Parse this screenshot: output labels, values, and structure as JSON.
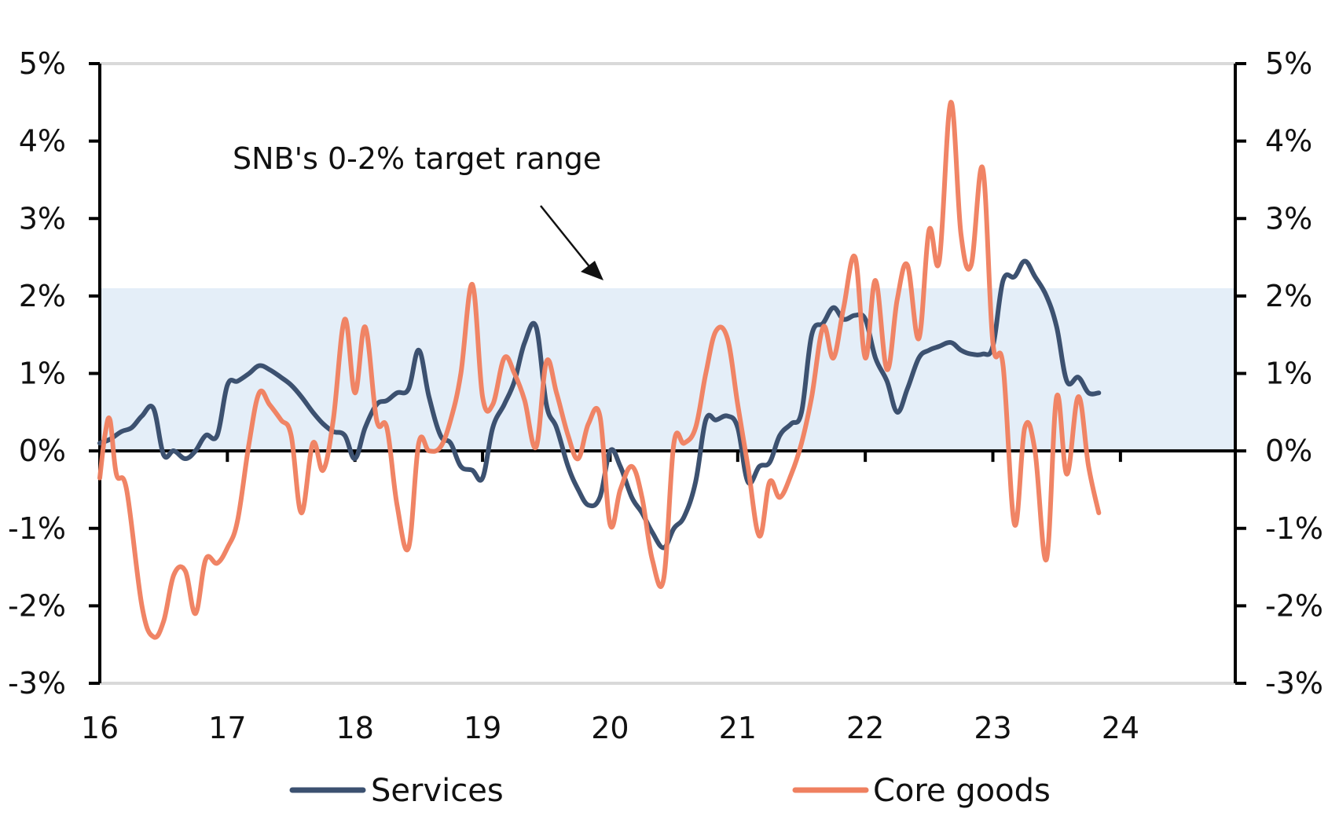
{
  "chart_data": {
    "type": "line",
    "x_tick_labels": [
      "16",
      "17",
      "18",
      "19",
      "20",
      "21",
      "22",
      "23",
      "24"
    ],
    "x_range": [
      2016,
      2024.9
    ],
    "y_tick_labels": [
      "5%",
      "4%",
      "3%",
      "2%",
      "1%",
      "0%",
      "-1%",
      "-2%",
      "-3%"
    ],
    "y_ticks": [
      5,
      4,
      3,
      2,
      1,
      0,
      -1,
      -2,
      -3
    ],
    "ylim": [
      -3,
      5
    ],
    "y_unit": "%",
    "target_band": {
      "low": 0,
      "high": 2.1,
      "color": "#e4eef8"
    },
    "annotation": "SNB's 0-2% target range",
    "grid": false,
    "legend_position": "bottom",
    "series": [
      {
        "name": "Services",
        "color": "#3c5170",
        "points": [
          [
            2016.0,
            0.1
          ],
          [
            2016.08,
            0.15
          ],
          [
            2016.17,
            0.25
          ],
          [
            2016.25,
            0.3
          ],
          [
            2016.33,
            0.45
          ],
          [
            2016.42,
            0.55
          ],
          [
            2016.5,
            -0.05
          ],
          [
            2016.58,
            0.0
          ],
          [
            2016.67,
            -0.1
          ],
          [
            2016.75,
            0.0
          ],
          [
            2016.83,
            0.2
          ],
          [
            2016.92,
            0.2
          ],
          [
            2017.0,
            0.85
          ],
          [
            2017.08,
            0.9
          ],
          [
            2017.17,
            1.0
          ],
          [
            2017.25,
            1.1
          ],
          [
            2017.33,
            1.05
          ],
          [
            2017.42,
            0.95
          ],
          [
            2017.5,
            0.85
          ],
          [
            2017.58,
            0.7
          ],
          [
            2017.67,
            0.5
          ],
          [
            2017.75,
            0.35
          ],
          [
            2017.83,
            0.25
          ],
          [
            2017.92,
            0.2
          ],
          [
            2018.0,
            -0.1
          ],
          [
            2018.08,
            0.3
          ],
          [
            2018.17,
            0.6
          ],
          [
            2018.25,
            0.65
          ],
          [
            2018.33,
            0.75
          ],
          [
            2018.42,
            0.8
          ],
          [
            2018.5,
            1.3
          ],
          [
            2018.58,
            0.7
          ],
          [
            2018.67,
            0.2
          ],
          [
            2018.75,
            0.1
          ],
          [
            2018.83,
            -0.2
          ],
          [
            2018.92,
            -0.25
          ],
          [
            2019.0,
            -0.35
          ],
          [
            2019.08,
            0.3
          ],
          [
            2019.17,
            0.6
          ],
          [
            2019.25,
            0.9
          ],
          [
            2019.33,
            1.4
          ],
          [
            2019.42,
            1.6
          ],
          [
            2019.5,
            0.6
          ],
          [
            2019.58,
            0.3
          ],
          [
            2019.67,
            -0.2
          ],
          [
            2019.75,
            -0.5
          ],
          [
            2019.83,
            -0.7
          ],
          [
            2019.92,
            -0.6
          ],
          [
            2020.0,
            0.0
          ],
          [
            2020.08,
            -0.2
          ],
          [
            2020.17,
            -0.6
          ],
          [
            2020.25,
            -0.8
          ],
          [
            2020.33,
            -1.05
          ],
          [
            2020.42,
            -1.25
          ],
          [
            2020.5,
            -1.0
          ],
          [
            2020.58,
            -0.85
          ],
          [
            2020.67,
            -0.4
          ],
          [
            2020.75,
            0.4
          ],
          [
            2020.83,
            0.4
          ],
          [
            2020.92,
            0.45
          ],
          [
            2021.0,
            0.3
          ],
          [
            2021.08,
            -0.4
          ],
          [
            2021.17,
            -0.2
          ],
          [
            2021.25,
            -0.15
          ],
          [
            2021.33,
            0.2
          ],
          [
            2021.42,
            0.35
          ],
          [
            2021.5,
            0.5
          ],
          [
            2021.58,
            1.5
          ],
          [
            2021.67,
            1.65
          ],
          [
            2021.75,
            1.85
          ],
          [
            2021.83,
            1.7
          ],
          [
            2021.92,
            1.75
          ],
          [
            2022.0,
            1.7
          ],
          [
            2022.08,
            1.2
          ],
          [
            2022.17,
            0.9
          ],
          [
            2022.25,
            0.5
          ],
          [
            2022.33,
            0.8
          ],
          [
            2022.42,
            1.2
          ],
          [
            2022.5,
            1.3
          ],
          [
            2022.58,
            1.35
          ],
          [
            2022.67,
            1.4
          ],
          [
            2022.75,
            1.3
          ],
          [
            2022.83,
            1.25
          ],
          [
            2022.92,
            1.25
          ],
          [
            2023.0,
            1.35
          ],
          [
            2023.08,
            2.2
          ],
          [
            2023.17,
            2.25
          ],
          [
            2023.25,
            2.45
          ],
          [
            2023.33,
            2.25
          ],
          [
            2023.42,
            2.0
          ],
          [
            2023.5,
            1.6
          ],
          [
            2023.58,
            0.9
          ],
          [
            2023.67,
            0.95
          ],
          [
            2023.75,
            0.75
          ],
          [
            2023.83,
            0.75
          ]
        ]
      },
      {
        "name": "Core goods",
        "color": "#ef8060",
        "points": [
          [
            2016.0,
            -0.35
          ],
          [
            2016.04,
            0.2
          ],
          [
            2016.08,
            0.4
          ],
          [
            2016.13,
            -0.3
          ],
          [
            2016.21,
            -0.5
          ],
          [
            2016.33,
            -2.0
          ],
          [
            2016.42,
            -2.4
          ],
          [
            2016.5,
            -2.2
          ],
          [
            2016.58,
            -1.6
          ],
          [
            2016.67,
            -1.55
          ],
          [
            2016.75,
            -2.1
          ],
          [
            2016.83,
            -1.4
          ],
          [
            2016.92,
            -1.45
          ],
          [
            2017.0,
            -1.25
          ],
          [
            2017.08,
            -0.9
          ],
          [
            2017.17,
            0.1
          ],
          [
            2017.25,
            0.75
          ],
          [
            2017.33,
            0.6
          ],
          [
            2017.42,
            0.4
          ],
          [
            2017.5,
            0.2
          ],
          [
            2017.58,
            -0.8
          ],
          [
            2017.67,
            0.1
          ],
          [
            2017.75,
            -0.25
          ],
          [
            2017.83,
            0.4
          ],
          [
            2017.92,
            1.7
          ],
          [
            2018.0,
            0.75
          ],
          [
            2018.08,
            1.6
          ],
          [
            2018.17,
            0.4
          ],
          [
            2018.25,
            0.3
          ],
          [
            2018.33,
            -0.7
          ],
          [
            2018.42,
            -1.25
          ],
          [
            2018.5,
            0.1
          ],
          [
            2018.58,
            0.0
          ],
          [
            2018.67,
            0.05
          ],
          [
            2018.75,
            0.4
          ],
          [
            2018.83,
            1.0
          ],
          [
            2018.92,
            2.15
          ],
          [
            2019.0,
            0.7
          ],
          [
            2019.08,
            0.6
          ],
          [
            2019.17,
            1.2
          ],
          [
            2019.25,
            1.0
          ],
          [
            2019.33,
            0.65
          ],
          [
            2019.42,
            0.05
          ],
          [
            2019.5,
            1.15
          ],
          [
            2019.58,
            0.75
          ],
          [
            2019.67,
            0.2
          ],
          [
            2019.75,
            -0.1
          ],
          [
            2019.83,
            0.35
          ],
          [
            2019.92,
            0.45
          ],
          [
            2020.0,
            -0.95
          ],
          [
            2020.08,
            -0.5
          ],
          [
            2020.17,
            -0.2
          ],
          [
            2020.25,
            -0.6
          ],
          [
            2020.33,
            -1.4
          ],
          [
            2020.42,
            -1.65
          ],
          [
            2020.5,
            0.1
          ],
          [
            2020.58,
            0.1
          ],
          [
            2020.67,
            0.3
          ],
          [
            2020.75,
            1.0
          ],
          [
            2020.83,
            1.55
          ],
          [
            2020.92,
            1.45
          ],
          [
            2021.0,
            0.6
          ],
          [
            2021.08,
            -0.2
          ],
          [
            2021.17,
            -1.1
          ],
          [
            2021.25,
            -0.4
          ],
          [
            2021.33,
            -0.6
          ],
          [
            2021.42,
            -0.3
          ],
          [
            2021.5,
            0.1
          ],
          [
            2021.58,
            0.7
          ],
          [
            2021.67,
            1.6
          ],
          [
            2021.75,
            1.2
          ],
          [
            2021.83,
            1.85
          ],
          [
            2021.92,
            2.5
          ],
          [
            2022.0,
            1.2
          ],
          [
            2022.08,
            2.2
          ],
          [
            2022.17,
            1.05
          ],
          [
            2022.25,
            1.95
          ],
          [
            2022.33,
            2.4
          ],
          [
            2022.42,
            1.45
          ],
          [
            2022.5,
            2.85
          ],
          [
            2022.58,
            2.45
          ],
          [
            2022.67,
            4.5
          ],
          [
            2022.75,
            2.8
          ],
          [
            2022.83,
            2.4
          ],
          [
            2022.92,
            3.65
          ],
          [
            2023.0,
            1.4
          ],
          [
            2023.08,
            1.1
          ],
          [
            2023.17,
            -0.95
          ],
          [
            2023.25,
            0.3
          ],
          [
            2023.33,
            0.0
          ],
          [
            2023.42,
            -1.4
          ],
          [
            2023.5,
            0.7
          ],
          [
            2023.58,
            -0.3
          ],
          [
            2023.67,
            0.7
          ],
          [
            2023.75,
            -0.2
          ],
          [
            2023.83,
            -0.8
          ]
        ]
      }
    ]
  },
  "legend": [
    {
      "label": "Services",
      "color": "#3c5170"
    },
    {
      "label": "Core goods",
      "color": "#ef8060"
    }
  ]
}
